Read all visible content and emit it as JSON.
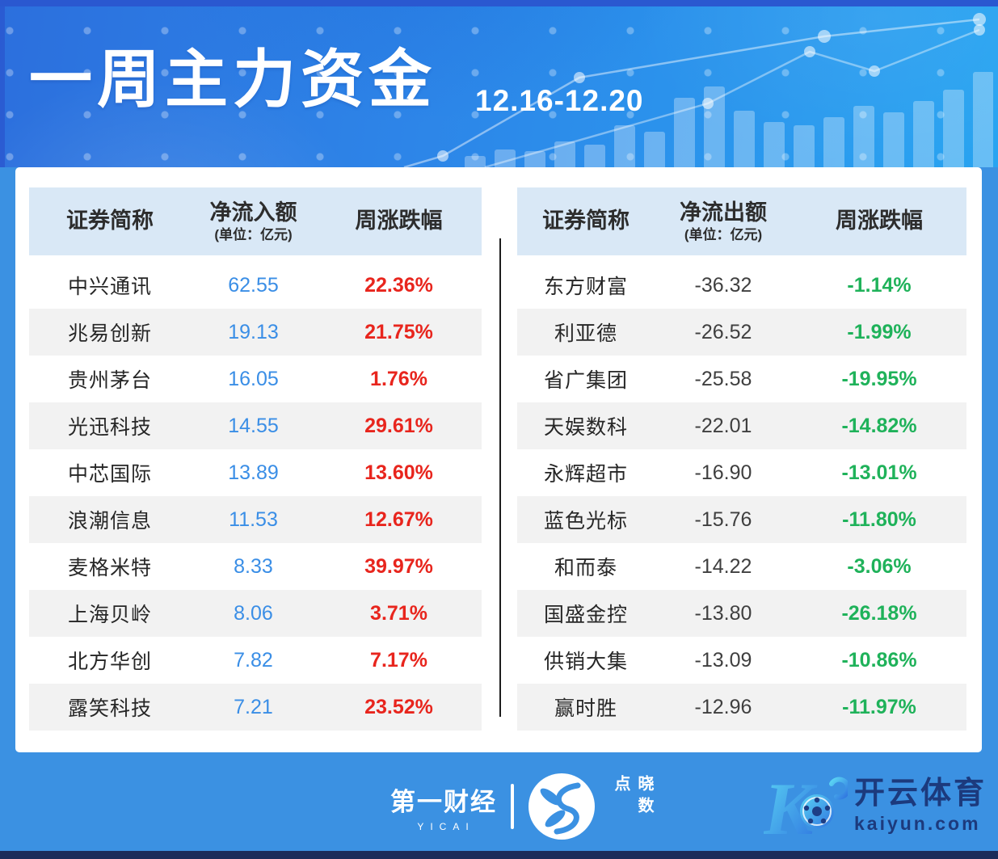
{
  "header": {
    "title": "一周主力资金",
    "date_range": "12.16-12.20"
  },
  "tables": {
    "inflow": {
      "col_name": "证券简称",
      "col_amount": "净流入额",
      "col_amount_unit": "(单位：亿元)",
      "col_change": "周涨跌幅"
    },
    "outflow": {
      "col_name": "证券简称",
      "col_amount": "净流出额",
      "col_amount_unit": "(单位：亿元)",
      "col_change": "周涨跌幅"
    }
  },
  "footer": {
    "yicai_cn": "第一财经",
    "yicai_en": "YICAI",
    "xsd_text": "晓数点",
    "kaiyun_cn": "开云体育",
    "kaiyun_domain": "kaiyun.com"
  },
  "colors": {
    "page_blue": "#3B91E2",
    "header_band": "#D9E8F6",
    "row_alt": "#F2F2F2",
    "inflow_value_blue": "#3A8EE6",
    "outflow_value_dark": "#3F3F3F",
    "change_red": "#E8251D",
    "change_green": "#1FB25A",
    "kaiyun_navy": "#1C3A7D"
  },
  "chart_data": [
    {
      "type": "table",
      "title": "净流入额",
      "unit": "亿元",
      "columns": [
        "证券简称",
        "净流入额(亿元)",
        "周涨跌幅"
      ],
      "rows": [
        [
          "中兴通讯",
          "62.55",
          "22.36%"
        ],
        [
          "兆易创新",
          "19.13",
          "21.75%"
        ],
        [
          "贵州茅台",
          "16.05",
          "1.76%"
        ],
        [
          "光迅科技",
          "14.55",
          "29.61%"
        ],
        [
          "中芯国际",
          "13.89",
          "13.60%"
        ],
        [
          "浪潮信息",
          "11.53",
          "12.67%"
        ],
        [
          "麦格米特",
          "8.33",
          "39.97%"
        ],
        [
          "上海贝岭",
          "8.06",
          "3.71%"
        ],
        [
          "北方华创",
          "7.82",
          "7.17%"
        ],
        [
          "露笑科技",
          "7.21",
          "23.52%"
        ]
      ]
    },
    {
      "type": "table",
      "title": "净流出额",
      "unit": "亿元",
      "columns": [
        "证券简称",
        "净流出额(亿元)",
        "周涨跌幅"
      ],
      "rows": [
        [
          "东方财富",
          "-36.32",
          "-1.14%"
        ],
        [
          "利亚德",
          "-26.52",
          "-1.99%"
        ],
        [
          "省广集团",
          "-25.58",
          "-19.95%"
        ],
        [
          "天娱数科",
          "-22.01",
          "-14.82%"
        ],
        [
          "永辉超市",
          "-16.90",
          "-13.01%"
        ],
        [
          "蓝色光标",
          "-15.76",
          "-11.80%"
        ],
        [
          "和而泰",
          "-14.22",
          "-3.06%"
        ],
        [
          "国盛金控",
          "-13.80",
          "-26.18%"
        ],
        [
          "供销大集",
          "-13.09",
          "-10.86%"
        ],
        [
          "赢时胜",
          "-12.96",
          "-11.97%"
        ]
      ]
    }
  ]
}
